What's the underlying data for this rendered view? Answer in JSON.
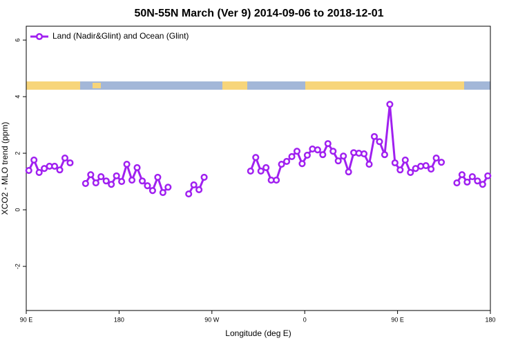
{
  "chart_data": {
    "type": "line",
    "title": "50N-55N March (Ver 9)   2014-09-06 to 2018-12-01",
    "xlabel": "Longitude (deg E)",
    "ylabel": "XCO2 - MLO trend (ppm)",
    "xlim": [
      90,
      540
    ],
    "ylim": [
      -3.56,
      6.49
    ],
    "xticks": [
      {
        "value": 90,
        "label": "90 E"
      },
      180,
      {
        "value": 270,
        "label": "90 W"
      },
      {
        "value": 360,
        "label": "0"
      },
      {
        "value": 450,
        "label": "90 E"
      },
      {
        "value": 540,
        "label": "180"
      }
    ],
    "yticks": [
      -2,
      0,
      2,
      4,
      6
    ],
    "legend": "top-left",
    "x": [
      92.5,
      97.5,
      102.5,
      107.5,
      112.5,
      117.5,
      122.5,
      127.5,
      132.5,
      137.5,
      142.5,
      147.5,
      152.5,
      157.5,
      162.5,
      167.5,
      172.5,
      177.5,
      182.5,
      187.5,
      192.5,
      197.5,
      202.5,
      207.5,
      212.5,
      217.5,
      222.5,
      227.5,
      232.5,
      237.5,
      242.5,
      247.5,
      252.5,
      257.5,
      262.5,
      267.5,
      272.5,
      277.5,
      282.5,
      287.5,
      292.5,
      297.5,
      302.5,
      307.5,
      312.5,
      317.5,
      322.5,
      327.5,
      332.5,
      337.5,
      342.5,
      347.5,
      352.5,
      357.5,
      362.5,
      367.5,
      372.5,
      377.5,
      382.5,
      387.5,
      392.5,
      397.5,
      402.5,
      407.5,
      412.5,
      417.5,
      422.5,
      427.5,
      432.5,
      437.5,
      442.5,
      447.5,
      452.5,
      457.5,
      462.5,
      467.5,
      472.5,
      477.5,
      482.5,
      487.5,
      492.5,
      497.5,
      502.5,
      507.5,
      512.5,
      517.5,
      522.5,
      527.5,
      532.5,
      537.5
    ],
    "series": [
      {
        "name": "Land (Nadir&Glint) and Ocean (Glint)",
        "color": "#a020f0",
        "values": [
          1.39,
          1.76,
          1.32,
          1.46,
          1.54,
          1.54,
          1.41,
          1.83,
          1.66,
          null,
          null,
          0.93,
          1.24,
          0.95,
          1.17,
          1.02,
          0.9,
          1.2,
          1.0,
          1.61,
          1.05,
          1.49,
          1.02,
          0.85,
          0.68,
          1.15,
          0.61,
          0.8,
          null,
          null,
          null,
          0.56,
          0.88,
          0.71,
          1.15,
          null,
          null,
          null,
          null,
          null,
          null,
          null,
          null,
          1.37,
          1.85,
          1.37,
          1.49,
          1.05,
          1.05,
          1.61,
          1.71,
          1.88,
          2.07,
          1.63,
          1.93,
          2.15,
          2.12,
          1.95,
          2.34,
          2.07,
          1.73,
          1.9,
          1.34,
          2.02,
          2.0,
          1.98,
          1.61,
          2.59,
          2.41,
          1.95,
          3.73,
          1.66,
          1.41,
          1.76,
          1.32,
          1.46,
          1.54,
          1.56,
          1.44,
          1.83,
          1.68,
          null,
          null,
          0.95,
          1.24,
          0.98,
          1.17,
          1.02,
          0.9,
          1.2
        ]
      }
    ]
  }
}
